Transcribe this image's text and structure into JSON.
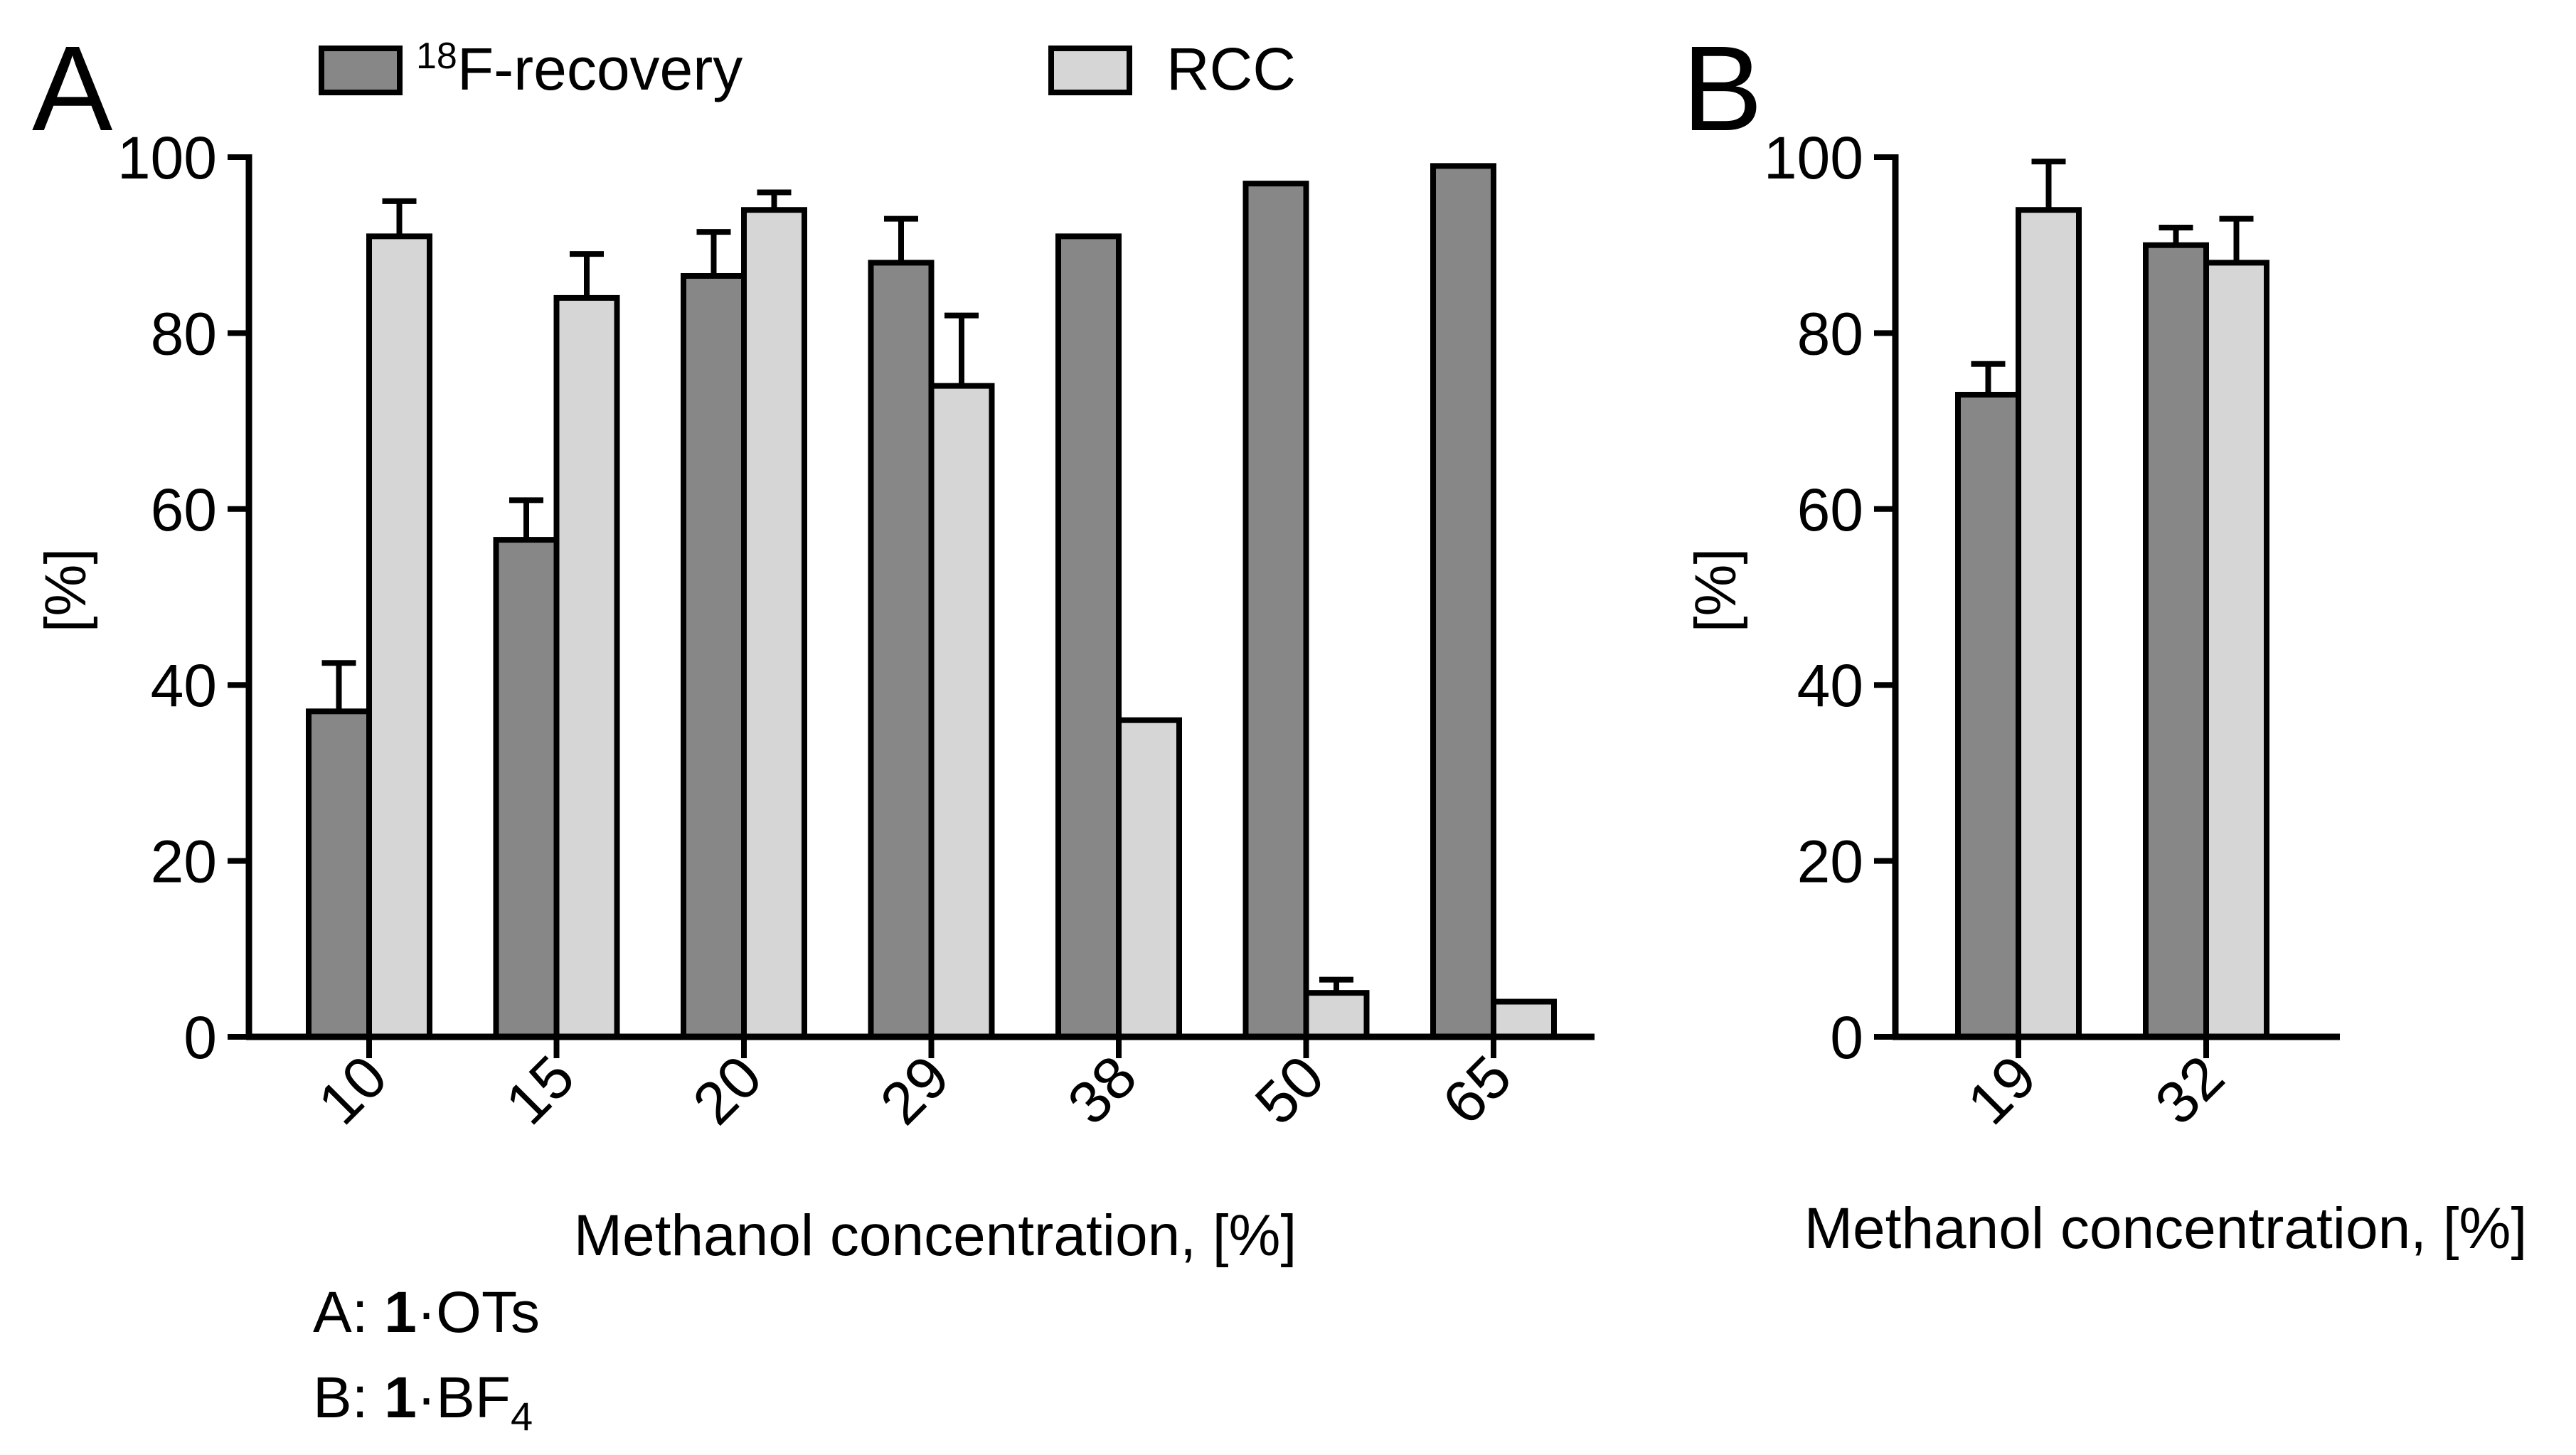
{
  "legend": {
    "recovery_label": "F-recovery",
    "recovery_sup": "18",
    "rcc_label": "RCC"
  },
  "colors": {
    "recovery": "#878787",
    "rcc": "#d6d6d6",
    "stroke": "#000000"
  },
  "caption": {
    "line_a_prefix": "A: ",
    "line_a_bold": "1",
    "line_a_suffix": "·OTs",
    "line_b_prefix": "B: ",
    "line_b_bold": "1",
    "line_b_suffix": "·BF",
    "line_b_sub": "4"
  },
  "chart_data": [
    {
      "panel": "A",
      "type": "bar",
      "title": "",
      "xlabel": "Methanol concentration, [%]",
      "ylabel": "[%]",
      "ylim": [
        0,
        100
      ],
      "yticks": [
        0,
        20,
        40,
        60,
        80,
        100
      ],
      "categories": [
        "10",
        "15",
        "20",
        "29",
        "38",
        "50",
        "65"
      ],
      "series": [
        {
          "name": "18F-recovery",
          "values": [
            37,
            56.5,
            86.5,
            88,
            91,
            97,
            99
          ],
          "errors": [
            5.5,
            4.5,
            5,
            5,
            0,
            0,
            0
          ]
        },
        {
          "name": "RCC",
          "values": [
            91,
            84,
            94,
            74,
            36,
            5,
            4
          ],
          "errors": [
            4,
            5,
            2,
            8,
            0,
            1.5,
            0
          ]
        }
      ]
    },
    {
      "panel": "B",
      "type": "bar",
      "title": "",
      "xlabel": "Methanol concentration, [%]",
      "ylabel": "[%]",
      "ylim": [
        0,
        100
      ],
      "yticks": [
        0,
        20,
        40,
        60,
        80,
        100
      ],
      "categories": [
        "19",
        "32"
      ],
      "series": [
        {
          "name": "18F-recovery",
          "values": [
            73,
            90
          ],
          "errors": [
            3.5,
            2
          ]
        },
        {
          "name": "RCC",
          "values": [
            94,
            88
          ],
          "errors": [
            5.5,
            5
          ]
        }
      ]
    }
  ]
}
